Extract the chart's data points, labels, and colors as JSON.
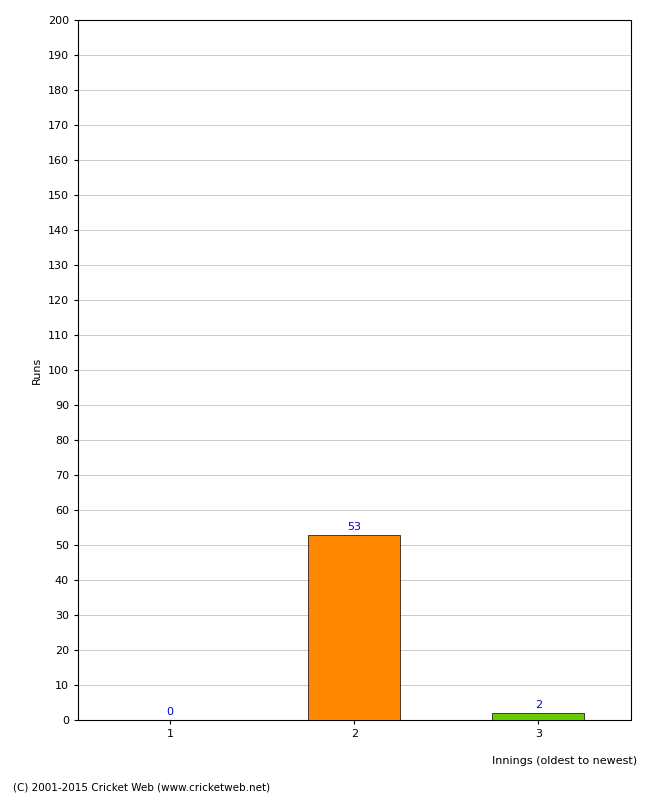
{
  "categories": [
    1,
    2,
    3
  ],
  "values": [
    0,
    53,
    2
  ],
  "bar_colors": [
    "#ff8800",
    "#ff8800",
    "#66cc00"
  ],
  "ylabel": "Runs",
  "xlabel": "Innings (oldest to newest)",
  "ylim": [
    0,
    200
  ],
  "yticks": [
    0,
    10,
    20,
    30,
    40,
    50,
    60,
    70,
    80,
    90,
    100,
    110,
    120,
    130,
    140,
    150,
    160,
    170,
    180,
    190,
    200
  ],
  "background_color": "#ffffff",
  "grid_color": "#cccccc",
  "label_color": "#0000cc",
  "footer": "(C) 2001-2015 Cricket Web (www.cricketweb.net)",
  "bar_width": 0.5,
  "spine_color": "#888888"
}
